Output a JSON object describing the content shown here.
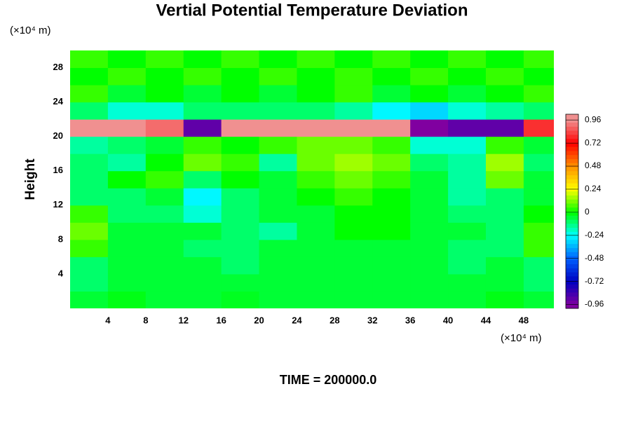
{
  "chart_data": {
    "type": "heatmap",
    "title": "Vertial Potential Temperature Deviation",
    "y_label": "Height",
    "x_unit": "(×10⁴ m)",
    "y_unit": "(×10⁴ m)",
    "footer": "TIME = 200000.0",
    "xlim": [
      0,
      51.2
    ],
    "ylim": [
      0,
      30
    ],
    "xticks": [
      4,
      8,
      12,
      16,
      20,
      24,
      28,
      32,
      36,
      40,
      44,
      48
    ],
    "yticks": [
      4,
      8,
      12,
      16,
      20,
      24,
      28
    ],
    "x": [
      2,
      6,
      10,
      14,
      18,
      22,
      26,
      30,
      34,
      38,
      42,
      46,
      50
    ],
    "y": [
      1,
      3,
      5,
      7,
      9,
      11,
      13,
      15,
      17,
      19,
      21,
      23,
      25,
      27,
      29
    ],
    "z": [
      [
        -0.05,
        -0.02,
        -0.05,
        -0.05,
        -0.03,
        -0.05,
        -0.05,
        -0.05,
        -0.05,
        -0.05,
        -0.05,
        -0.02,
        -0.05
      ],
      [
        -0.1,
        -0.05,
        -0.05,
        -0.05,
        -0.05,
        -0.05,
        -0.05,
        -0.05,
        -0.05,
        -0.05,
        -0.05,
        -0.05,
        -0.1
      ],
      [
        -0.1,
        -0.05,
        -0.05,
        -0.05,
        -0.1,
        -0.05,
        -0.05,
        -0.05,
        -0.05,
        -0.05,
        -0.1,
        -0.05,
        -0.1
      ],
      [
        0.05,
        -0.05,
        -0.05,
        -0.1,
        -0.1,
        -0.05,
        -0.05,
        -0.05,
        -0.05,
        -0.05,
        -0.1,
        -0.1,
        0.05
      ],
      [
        0.1,
        -0.05,
        -0.05,
        -0.05,
        -0.1,
        -0.15,
        -0.05,
        0,
        0,
        -0.05,
        -0.05,
        -0.1,
        0.05
      ],
      [
        0.05,
        -0.1,
        -0.1,
        -0.2,
        -0.1,
        -0.05,
        -0.05,
        0,
        0,
        -0.05,
        -0.1,
        -0.1,
        0
      ],
      [
        -0.1,
        -0.1,
        -0.05,
        -0.25,
        -0.1,
        -0.05,
        0,
        0.05,
        0,
        -0.05,
        -0.15,
        -0.1,
        -0.05
      ],
      [
        -0.1,
        0,
        0.05,
        -0.1,
        0,
        -0.05,
        0.05,
        0.1,
        0.05,
        -0.05,
        -0.15,
        0.1,
        -0.05
      ],
      [
        -0.1,
        -0.15,
        0,
        0.1,
        0.05,
        -0.15,
        0.1,
        0.15,
        0.1,
        -0.1,
        -0.15,
        0.15,
        -0.1
      ],
      [
        -0.15,
        -0.1,
        -0.05,
        0.05,
        0,
        0.05,
        0.1,
        0.1,
        0.05,
        -0.2,
        -0.2,
        0.05,
        -0.05
      ],
      [
        0.96,
        0.96,
        0.9,
        -0.9,
        0.96,
        0.96,
        0.96,
        0.96,
        0.96,
        -0.96,
        -0.9,
        -0.9,
        0.8
      ],
      [
        -0.1,
        -0.2,
        -0.2,
        -0.1,
        -0.1,
        -0.1,
        -0.1,
        -0.15,
        -0.25,
        -0.3,
        -0.2,
        -0.15,
        -0.1
      ],
      [
        0.05,
        -0.05,
        0,
        -0.05,
        0,
        -0.05,
        0,
        0.05,
        -0.05,
        0,
        -0.05,
        0,
        0.05
      ],
      [
        0,
        0.05,
        0,
        0.05,
        0,
        0.05,
        0,
        0.05,
        0,
        0.05,
        0,
        0.05,
        0
      ],
      [
        0.05,
        0,
        0.05,
        0,
        0.05,
        0,
        0.05,
        0,
        0.05,
        0,
        0.05,
        0,
        0.05
      ]
    ],
    "colorbar": {
      "lim": [
        -1.0,
        1.02
      ],
      "ticks": [
        0.96,
        0.72,
        0.48,
        0.24,
        0,
        -0.24,
        -0.48,
        -0.72,
        -0.96
      ],
      "colors": [
        "#f09090",
        "#ff0000",
        "#ff9000",
        "#ffff00",
        "#00ff00",
        "#00ffff",
        "#0060ff",
        "#0000c0",
        "#8000a0"
      ]
    }
  }
}
